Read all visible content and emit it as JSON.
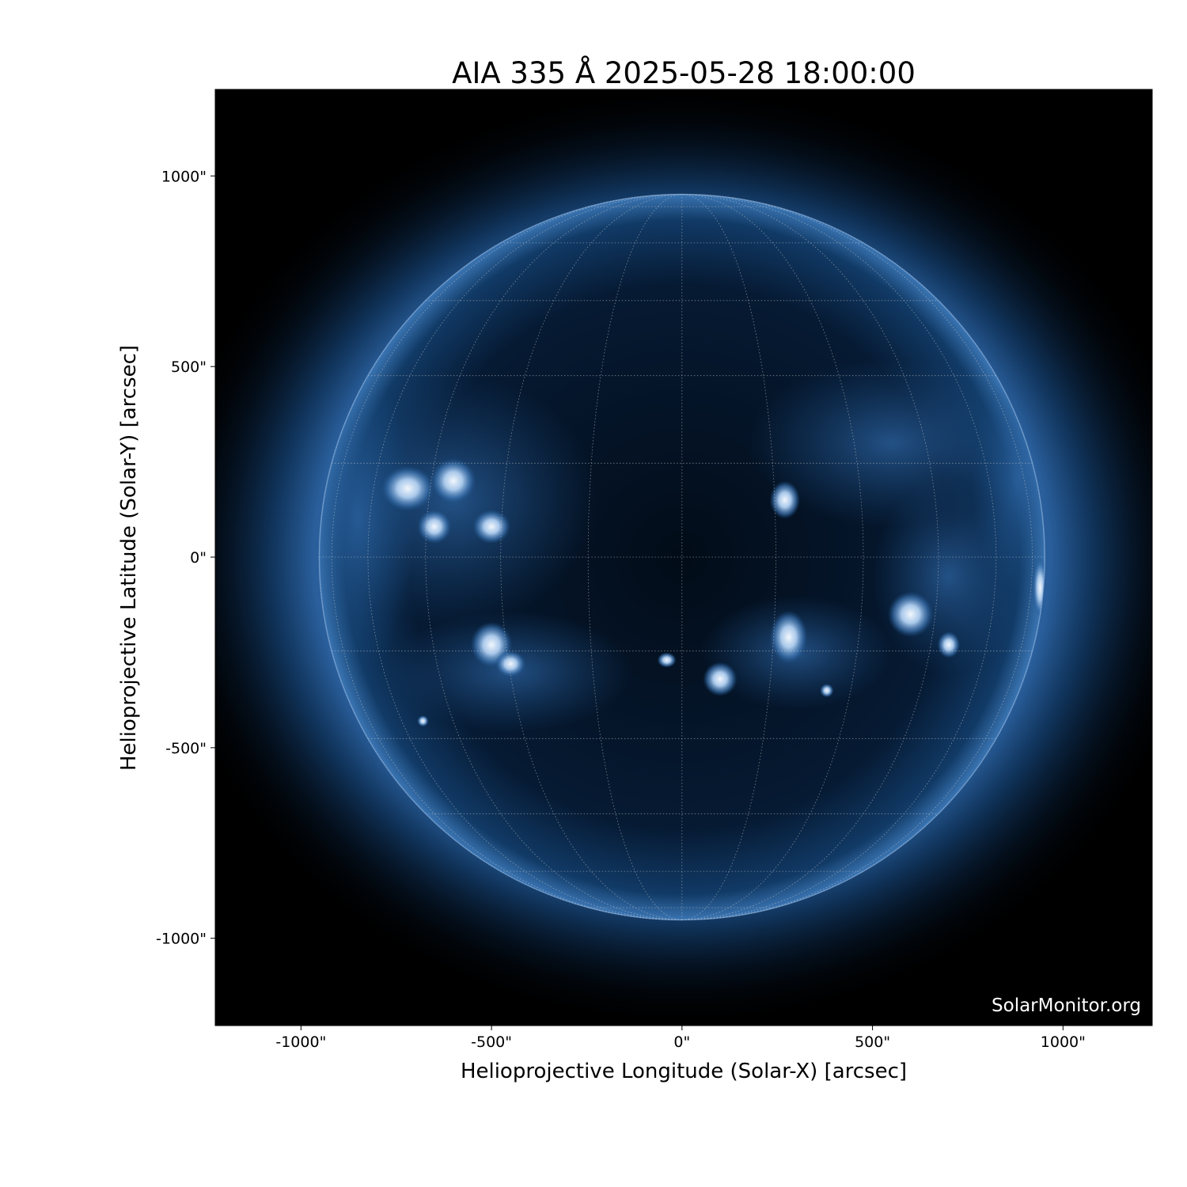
{
  "chart_data": {
    "type": "heatmap",
    "title": "AIA 335 Å 2025-05-28 18:00:00",
    "xlabel": "Helioprojective Longitude (Solar-X) [arcsec]",
    "ylabel": "Helioprojective Latitude (Solar-Y) [arcsec]",
    "xlim": [
      -1225,
      1234
    ],
    "ylim": [
      -1229,
      1227
    ],
    "xticks": [
      -1000,
      -500,
      0,
      500,
      1000
    ],
    "yticks": [
      -1000,
      -500,
      0,
      500,
      1000
    ],
    "xtick_labels": [
      "-1000\"",
      "-500\"",
      "0\"",
      "500\"",
      "1000\""
    ],
    "ytick_labels": [
      "-1000\"",
      "-500\"",
      "0\"",
      "500\"",
      "1000\""
    ],
    "solar_radius_arcsec": 952,
    "grid": {
      "enabled": true,
      "style": "dotted",
      "lat_spacing_deg": 15,
      "lon_spacing_deg": 15
    },
    "colormap": "sdoaia335",
    "colors": {
      "background": "#000000",
      "disk_dark": "#02101f",
      "disk_mid": "#1b4f86",
      "bright": "#e8f1fb",
      "grid": "#c8c8c8"
    },
    "watermark": "SolarMonitor.org"
  }
}
